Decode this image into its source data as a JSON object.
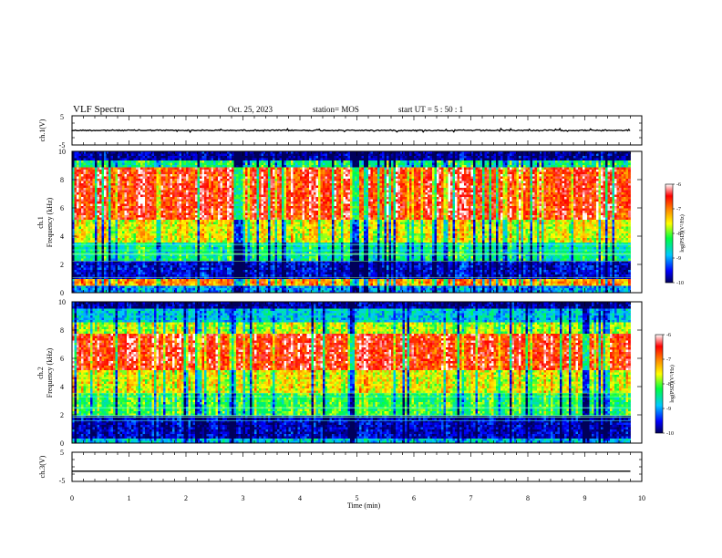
{
  "header": {
    "title": "VLF Spectra",
    "date": "Oct. 25, 2023",
    "station": "station= MOS",
    "start_ut": "start  UT =  5 : 50 : 1"
  },
  "chart_data": [
    {
      "type": "line",
      "panel": "ch1-waveform",
      "ylabel": "ch.1(V)",
      "ylim": [
        -5,
        5
      ],
      "yticks": [
        "5",
        "-5"
      ],
      "baseline_value": 0,
      "xlim": [
        0,
        10
      ],
      "data_extent": [
        0,
        9.8
      ]
    },
    {
      "type": "heatmap",
      "panel": "ch1-spectrogram",
      "ylabel_ch": "ch.1",
      "ylabel": "Frequency  (kHz)",
      "ylim": [
        0,
        10
      ],
      "yticks": [
        "0",
        "2",
        "4",
        "6",
        "8",
        "10"
      ],
      "xlim": [
        0,
        10
      ],
      "data_extent": [
        0,
        9.8
      ],
      "colorbar": {
        "label": "log(PSD)(V²/Hz)",
        "range": [
          -10,
          -6
        ],
        "ticks": [
          "-6",
          "-7",
          "-8",
          "-9",
          "-10"
        ]
      },
      "bands": [
        {
          "from": 9.4,
          "to": 10,
          "level": 0.05
        },
        {
          "from": 8.8,
          "to": 9.4,
          "level": 0.4
        },
        {
          "from": 5.2,
          "to": 8.8,
          "level": 0.85
        },
        {
          "from": 3.6,
          "to": 5.2,
          "level": 0.6
        },
        {
          "from": 2.2,
          "to": 3.6,
          "level": 0.38
        },
        {
          "from": 1.0,
          "to": 2.2,
          "level": 0.1
        },
        {
          "from": 0.5,
          "to": 1.0,
          "level": 0.72
        },
        {
          "from": 0.0,
          "to": 0.5,
          "level": 0.25
        }
      ]
    },
    {
      "type": "heatmap",
      "panel": "ch2-spectrogram",
      "ylabel_ch": "ch.2",
      "ylabel": "Frequency  (kHz)",
      "ylim": [
        0,
        10
      ],
      "yticks": [
        "0",
        "2",
        "4",
        "6",
        "8",
        "10"
      ],
      "xlim": [
        0,
        10
      ],
      "data_extent": [
        0,
        9.8
      ],
      "colorbar": {
        "label": "log(PSD)(V²/Hz)",
        "range": [
          -10,
          -6
        ],
        "ticks": [
          "-6",
          "-7",
          "-8",
          "-9",
          "-10"
        ]
      },
      "bands": [
        {
          "from": 9.5,
          "to": 10,
          "level": 0.05
        },
        {
          "from": 8.6,
          "to": 9.5,
          "level": 0.3
        },
        {
          "from": 7.8,
          "to": 8.6,
          "level": 0.55
        },
        {
          "from": 5.2,
          "to": 7.8,
          "level": 0.85
        },
        {
          "from": 3.6,
          "to": 5.2,
          "level": 0.6
        },
        {
          "from": 2.0,
          "to": 3.6,
          "level": 0.45
        },
        {
          "from": 0.3,
          "to": 2.0,
          "level": 0.08
        },
        {
          "from": 0.0,
          "to": 0.3,
          "level": 0.3
        }
      ]
    },
    {
      "type": "line",
      "panel": "ch3-waveform",
      "ylabel": "ch.3(V)",
      "ylim": [
        -5,
        5
      ],
      "yticks": [
        "5",
        "-5"
      ],
      "baseline_value": -1.5,
      "xlim": [
        0,
        10
      ],
      "data_extent": [
        0,
        9.8
      ],
      "xlabel": "Time  (min)",
      "xticks": [
        "0",
        "1",
        "2",
        "3",
        "4",
        "5",
        "6",
        "7",
        "8",
        "9",
        "10"
      ]
    }
  ]
}
